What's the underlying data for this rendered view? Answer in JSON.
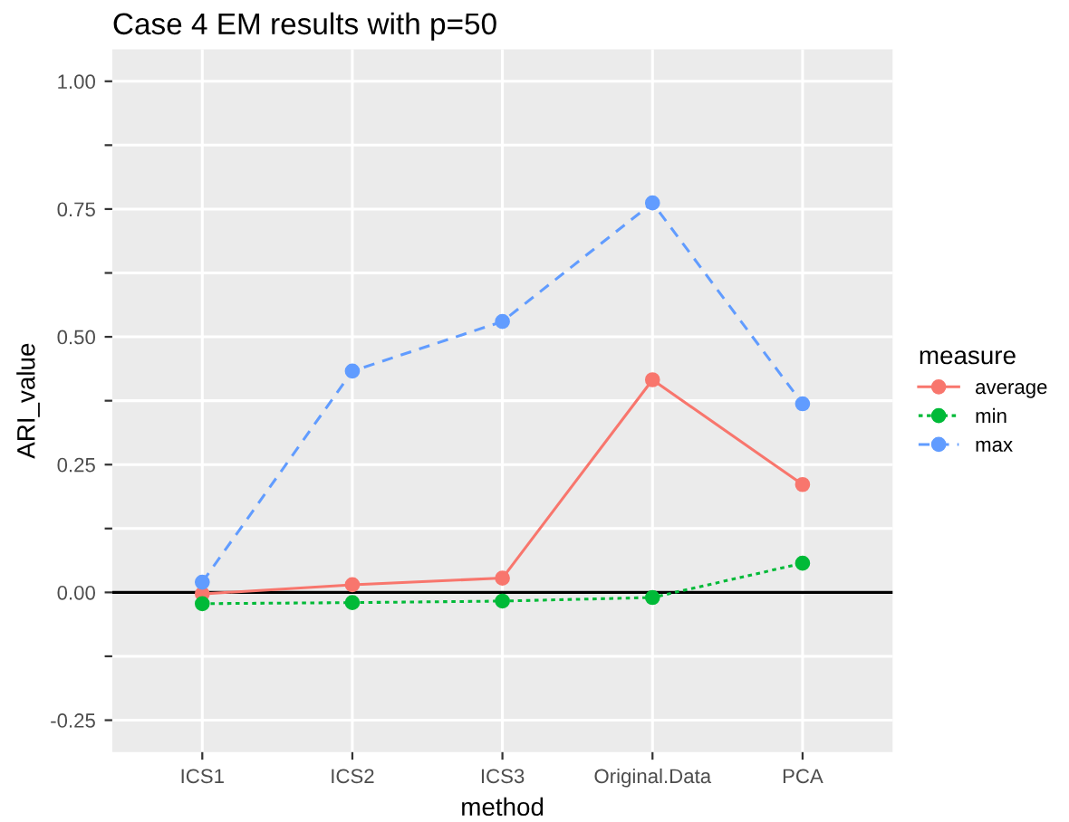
{
  "chart_data": {
    "type": "line",
    "title": "Case 4 EM results with p=50",
    "xlabel": "method",
    "ylabel": "ARI_value",
    "legend_title": "measure",
    "categories": [
      "ICS1",
      "ICS2",
      "ICS3",
      "Original.Data",
      "PCA"
    ],
    "series": [
      {
        "name": "average",
        "color": "#f8766d",
        "line_style": "solid",
        "values": [
          -0.003,
          0.015,
          0.028,
          0.416,
          0.211
        ]
      },
      {
        "name": "min",
        "color": "#00ba38",
        "line_style": "dotted",
        "values": [
          -0.022,
          -0.02,
          -0.017,
          -0.01,
          0.057
        ]
      },
      {
        "name": "max",
        "color": "#619cff",
        "line_style": "dashed",
        "values": [
          0.02,
          0.433,
          0.53,
          0.762,
          0.369
        ]
      }
    ],
    "marker": "circle",
    "ylim": [
      -0.3125,
      1.0625
    ],
    "yticks": [
      {
        "value": -0.25,
        "label": "-0.25"
      },
      {
        "value": -0.125,
        "label": null
      },
      {
        "value": 0,
        "label": "0.00"
      },
      {
        "value": 0.125,
        "label": null
      },
      {
        "value": 0.25,
        "label": "0.25"
      },
      {
        "value": 0.375,
        "label": null
      },
      {
        "value": 0.5,
        "label": "0.50"
      },
      {
        "value": 0.625,
        "label": null
      },
      {
        "value": 0.75,
        "label": "0.75"
      },
      {
        "value": 0.875,
        "label": null
      },
      {
        "value": 1,
        "label": "1.00"
      }
    ],
    "ref_lines": [
      {
        "axis": "y",
        "value": 0,
        "label": null,
        "color": "#000000"
      }
    ],
    "grid": true,
    "legend": "right"
  }
}
